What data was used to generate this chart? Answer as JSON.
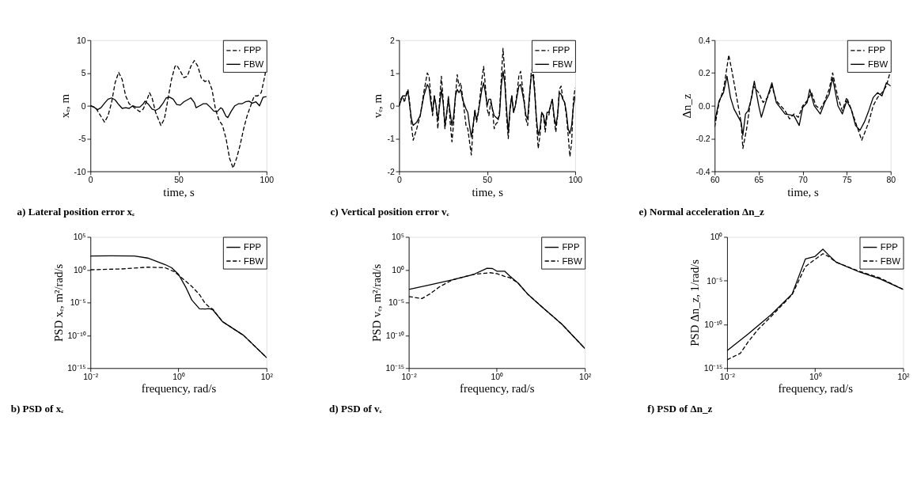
{
  "chart_data": [
    {
      "type": "line",
      "title": "a) Lateral position error xₑ",
      "xlabel": "time, s",
      "ylabel": "xₑ, m",
      "xlim": [
        0,
        100
      ],
      "xticks": [
        0,
        50,
        100
      ],
      "ylim": [
        -10,
        10
      ],
      "yticks": [
        -10,
        -5,
        0,
        5,
        10
      ],
      "grid": false,
      "legend": "top right",
      "series": [
        {
          "name": "FPP",
          "color": "#000000",
          "line_style": "dashed",
          "x": [
            0,
            3,
            5,
            8,
            10,
            12,
            14,
            16,
            18,
            20,
            22,
            25,
            28,
            30,
            32,
            33.5,
            35,
            37,
            40,
            42,
            44,
            46,
            48,
            49,
            51,
            53,
            55,
            57,
            59,
            61,
            63,
            65,
            67,
            69,
            71,
            73,
            75,
            77,
            79,
            81,
            83,
            85,
            87,
            89,
            91,
            93,
            95,
            97,
            99,
            100
          ],
          "values": [
            0,
            -0.3,
            -1.2,
            -2.5,
            -1.5,
            0.5,
            3.5,
            5.1,
            4,
            1.5,
            0.3,
            -0.3,
            -0.9,
            -0.5,
            0.8,
            2,
            1.2,
            -1,
            -3,
            -2,
            1,
            4,
            6,
            6.2,
            5.3,
            4.3,
            4.5,
            6,
            6.9,
            6,
            4.2,
            3.7,
            3.9,
            2.5,
            -0.5,
            -2.2,
            -3,
            -5,
            -8,
            -9.5,
            -8,
            -6,
            -3.5,
            -1.5,
            0,
            1.5,
            1.5,
            2,
            4.5,
            6.2
          ]
        },
        {
          "name": "FBW",
          "color": "#000000",
          "line_style": "solid",
          "x": [
            0,
            2,
            4,
            6,
            8,
            10,
            12,
            14,
            16,
            18,
            20,
            22,
            24,
            26,
            28,
            30,
            31,
            33,
            35,
            37,
            39,
            41,
            43,
            45,
            47,
            49,
            51,
            53,
            55,
            57,
            59,
            60,
            62,
            64,
            66,
            68,
            70,
            72,
            74,
            75,
            77,
            78,
            80,
            82,
            84,
            86,
            88,
            90,
            92,
            94,
            96,
            98,
            100
          ],
          "values": [
            0,
            -0.2,
            -0.6,
            -0.3,
            0.4,
            1,
            1.2,
            0.9,
            0.2,
            -0.4,
            -0.3,
            -0.4,
            0,
            -0.2,
            -0.2,
            0.3,
            0.7,
            0.2,
            -0.5,
            -0.7,
            -0.4,
            0.3,
            1.2,
            1.3,
            1,
            0.2,
            0.1,
            0.6,
            0.9,
            1.2,
            0.5,
            -0.3,
            0,
            0.3,
            0.3,
            -0.2,
            -0.8,
            -0.9,
            -0.3,
            -0.5,
            -1.6,
            -1.8,
            -0.8,
            0,
            0.3,
            0.3,
            0.6,
            0.7,
            0.4,
            0.6,
            0,
            1.3,
            1.4
          ]
        }
      ]
    },
    {
      "type": "line",
      "title": "c) Vertical position error vₑ",
      "xlabel": "time, s",
      "ylabel": "vₑ, m",
      "xlim": [
        0,
        100
      ],
      "xticks": [
        0,
        50,
        100
      ],
      "ylim": [
        -2,
        2
      ],
      "yticks": [
        -2,
        -1,
        0,
        1,
        2
      ],
      "grid": false,
      "legend": "top right",
      "series": [
        {
          "name": "FPP",
          "color": "#000000",
          "line_style": "dashed",
          "x": [
            0,
            1,
            2,
            3,
            4,
            5,
            6,
            7,
            8,
            10,
            12,
            14,
            16,
            17,
            18,
            19,
            20,
            21,
            22,
            23,
            24,
            25,
            26,
            27,
            28,
            29,
            30,
            31,
            32,
            33,
            34,
            35,
            36,
            38,
            39,
            40,
            41,
            42,
            43,
            44,
            45,
            47,
            48,
            49,
            50,
            51,
            52,
            53,
            54,
            55,
            56,
            57,
            58,
            59,
            60,
            61,
            62,
            63,
            64,
            65,
            66,
            67,
            68,
            69,
            70,
            71,
            72,
            73,
            74,
            75,
            76,
            77,
            78,
            79,
            80,
            81,
            82,
            83,
            84,
            85,
            86,
            87,
            88,
            89,
            90,
            91,
            92,
            93,
            94,
            95,
            96,
            97,
            98,
            99,
            100
          ],
          "values": [
            0,
            0.2,
            0.3,
            0.1,
            0.35,
            0.5,
            0.1,
            -0.6,
            -1.05,
            -0.7,
            -0.3,
            0.4,
            1,
            0.9,
            0.3,
            -0.3,
            0.3,
            0,
            -0.7,
            0.2,
            0.9,
            0.2,
            -0.7,
            -0.3,
            0.3,
            -0.5,
            -1.1,
            -0.5,
            0.3,
            0.95,
            0.6,
            0.7,
            0.3,
            -0.6,
            -0.7,
            -1.1,
            -1.5,
            -0.7,
            -0.1,
            -0.5,
            -0.2,
            0.8,
            1.2,
            0.6,
            -0.1,
            -0.3,
            0.1,
            -0.1,
            -0.7,
            -0.55,
            -0.5,
            -0.2,
            0.8,
            1.75,
            1,
            -0.3,
            -1,
            -0.1,
            0.3,
            -0.2,
            0,
            0.4,
            0.9,
            1.05,
            0.6,
            0.2,
            -0.4,
            -0.6,
            0.2,
            1,
            1.2,
            0.5,
            -0.5,
            -1.3,
            -0.9,
            -0.2,
            -0.3,
            -0.8,
            -0.3,
            -0.3,
            0,
            0.2,
            -0.4,
            -0.8,
            -0.3,
            0.5,
            0.6,
            0.2,
            0.1,
            -0.3,
            -0.9,
            -1.55,
            -1.1,
            0.2,
            0.55
          ]
        },
        {
          "name": "FBW",
          "color": "#000000",
          "line_style": "solid",
          "x": [
            0,
            2,
            4,
            5,
            6,
            7,
            8,
            10,
            12,
            14,
            16,
            17,
            18,
            19,
            20,
            21,
            22,
            23,
            24,
            25,
            26,
            27,
            28,
            30,
            31,
            32,
            33,
            34,
            35,
            36,
            38,
            39,
            40,
            41,
            42,
            43,
            44,
            45,
            47,
            48,
            49,
            50,
            51,
            52,
            53,
            54,
            55,
            56,
            57,
            58,
            59,
            60,
            61,
            62,
            63,
            64,
            65,
            66,
            67,
            68,
            69,
            70,
            71,
            72,
            73,
            74,
            75,
            76,
            77,
            78,
            79,
            80,
            81,
            82,
            83,
            84,
            85,
            86,
            87,
            88,
            89,
            90,
            91,
            92,
            93,
            94,
            95,
            96,
            97,
            98,
            99,
            100
          ],
          "values": [
            0,
            0.3,
            0.3,
            0.45,
            0,
            -0.4,
            -0.6,
            -0.5,
            -0.3,
            0.3,
            0.65,
            0.55,
            0.1,
            -0.2,
            0.3,
            0,
            -0.4,
            0,
            0.5,
            0.1,
            -0.6,
            -0.2,
            0.2,
            -0.6,
            -0.3,
            0.3,
            0.5,
            0.4,
            0.5,
            0.2,
            -0.1,
            -0.2,
            -0.6,
            -0.95,
            -0.6,
            -0.2,
            -0.4,
            -0.2,
            0.5,
            0.7,
            0.4,
            0,
            0.2,
            0.2,
            -0.1,
            -0.3,
            -0.35,
            -0.4,
            -0.3,
            0.6,
            1.05,
            0.7,
            -0.1,
            -0.8,
            -0.1,
            0.3,
            -0.2,
            0,
            0.3,
            0.6,
            0.65,
            0.4,
            0.1,
            -0.3,
            -0.4,
            0.3,
            0.9,
            0.95,
            0.4,
            -0.4,
            -0.9,
            -0.7,
            -0.2,
            -0.3,
            -0.6,
            -0.2,
            -0.2,
            0,
            0.2,
            -0.3,
            -0.6,
            -0.3,
            0.4,
            0.35,
            0.2,
            0.1,
            -0.2,
            -0.7,
            -0.85,
            -0.6,
            0,
            0.3
          ]
        }
      ]
    },
    {
      "type": "line",
      "title": "e) Normal acceleration Δn_z",
      "xlabel": "time, s",
      "ylabel": "Δn_z",
      "xlim": [
        60,
        80
      ],
      "xticks": [
        60,
        65,
        70,
        75,
        80
      ],
      "ylim": [
        -0.4,
        0.4
      ],
      "yticks": [
        -0.4,
        -0.2,
        {
          "value": 0,
          "label": "0.0"
        },
        0.2,
        0.4
      ],
      "grid": false,
      "legend": "top right",
      "series": [
        {
          "name": "FPP",
          "color": "#000000",
          "line_style": "dashed",
          "x": [
            60,
            60.5,
            61,
            61.3,
            61.6,
            62,
            62.5,
            63,
            63.2,
            63.6,
            64,
            64.4,
            65,
            65.5,
            66,
            66.5,
            67,
            68,
            68.5,
            69,
            69.5,
            70,
            70.5,
            71,
            71.5,
            72,
            72.5,
            73,
            73.4,
            74,
            74.5,
            75,
            75.5,
            76,
            76.7,
            77,
            77.5,
            78,
            78.5,
            79,
            79.5,
            80
          ],
          "values": [
            -0.13,
            0.02,
            0.1,
            0.2,
            0.31,
            0.2,
            0.05,
            -0.1,
            -0.26,
            -0.15,
            0,
            0.12,
            0.08,
            0.02,
            0.05,
            0.12,
            0.03,
            -0.03,
            -0.08,
            -0.05,
            -0.07,
            0,
            0.03,
            0.08,
            0,
            -0.02,
            0.03,
            0.1,
            0.2,
            0.05,
            -0.03,
            0.05,
            -0.02,
            -0.1,
            -0.21,
            -0.17,
            -0.1,
            0,
            0.05,
            0.08,
            0.12,
            0.22
          ]
        },
        {
          "name": "FBW",
          "color": "#000000",
          "line_style": "solid",
          "x": [
            60,
            60.5,
            61,
            61.4,
            61.8,
            62.2,
            62.6,
            63,
            63.2,
            63.5,
            63.8,
            64.2,
            64.5,
            65,
            65.3,
            65.8,
            66.5,
            67,
            68,
            69,
            69.6,
            70,
            70.5,
            70.8,
            71.3,
            72,
            72.5,
            73,
            73.4,
            74,
            74.5,
            75,
            75.5,
            76,
            76.5,
            77,
            77.5,
            78,
            78.5,
            79,
            79.5,
            80
          ],
          "values": [
            -0.1,
            0.03,
            0.08,
            0.18,
            0.05,
            -0.02,
            -0.06,
            -0.1,
            -0.18,
            -0.05,
            -0.03,
            0.05,
            0.15,
            0,
            -0.07,
            0.02,
            0.14,
            0.02,
            -0.05,
            -0.06,
            -0.12,
            -0.01,
            0.02,
            0.1,
            0,
            -0.05,
            0.02,
            0.07,
            0.17,
            0,
            -0.05,
            0.03,
            -0.02,
            -0.12,
            -0.15,
            -0.1,
            -0.03,
            0.05,
            0.08,
            0.06,
            0.14,
            0.12
          ]
        }
      ]
    },
    {
      "type": "line",
      "title": "b) PSD of xₑ",
      "xlabel": "frequency, rad/s",
      "ylabel": "PSD xₑ, m²/rad/s",
      "log": "xy",
      "xlim": [
        0.01,
        100
      ],
      "xticks": [
        {
          "value": 0.01,
          "label": "10⁻²"
        },
        {
          "value": 1,
          "label": "10⁰"
        },
        {
          "value": 100,
          "label": "10²"
        }
      ],
      "ylim": [
        1e-15,
        100000.0
      ],
      "yticks": [
        {
          "value": 1e-15,
          "label": "10⁻¹⁵"
        },
        {
          "value": 1e-10,
          "label": "10⁻¹⁰"
        },
        {
          "value": 1e-05,
          "label": "10⁻⁵"
        },
        {
          "value": 1,
          "label": "10⁰"
        },
        {
          "value": 100000.0,
          "label": "10⁵"
        }
      ],
      "grid": false,
      "legend": "top right",
      "series": [
        {
          "name": "FPP",
          "color": "#000000",
          "line_style": "solid",
          "x": [
            0.01,
            0.03,
            0.1,
            0.2,
            0.5,
            0.7,
            1,
            1.5,
            2,
            3,
            4,
            5,
            6,
            10,
            30,
            100
          ],
          "values": [
            126,
            130,
            125,
            60,
            6,
            2,
            0.2,
            0.0016,
            2.5e-05,
            1.1e-06,
            1e-06,
            1.2e-06,
            8e-07,
            1.2e-08,
            1e-10,
            4e-14
          ]
        },
        {
          "name": "FBW",
          "color": "#000000",
          "line_style": "dashed",
          "x": [
            0.01,
            0.05,
            0.2,
            0.5,
            0.8,
            1,
            2,
            3,
            4,
            5,
            6,
            10,
            30,
            100
          ],
          "values": [
            1,
            1.3,
            2.5,
            2,
            0.5,
            0.15,
            0.003,
            0.00016,
            8e-06,
            2e-06,
            1e-06,
            1.2e-08,
            1e-10,
            4e-14
          ]
        }
      ]
    },
    {
      "type": "line",
      "title": "d) PSD of vₑ",
      "xlabel": "frequency, rad/s",
      "ylabel": "PSD vₑ, m²/rad/s",
      "log": "xy",
      "xlim": [
        0.01,
        100
      ],
      "xticks": [
        {
          "value": 0.01,
          "label": "10⁻²"
        },
        {
          "value": 1,
          "label": "10⁰"
        },
        {
          "value": 100,
          "label": "10²"
        }
      ],
      "ylim": [
        1e-15,
        100000.0
      ],
      "yticks": [
        {
          "value": 1e-15,
          "label": "10⁻¹⁵"
        },
        {
          "value": 1e-10,
          "label": "10⁻¹⁰"
        },
        {
          "value": 1e-05,
          "label": "10⁻⁵"
        },
        {
          "value": 1,
          "label": "10⁰"
        },
        {
          "value": 100000.0,
          "label": "10⁵"
        }
      ],
      "grid": false,
      "legend": "top right",
      "series": [
        {
          "name": "FPP",
          "color": "#000000",
          "line_style": "solid",
          "x": [
            0.01,
            0.03,
            0.1,
            0.3,
            0.6,
            0.8,
            1,
            1.5,
            2,
            3,
            5,
            10,
            30,
            100
          ],
          "values": [
            0.001,
            0.005,
            0.03,
            0.2,
            1.7,
            1.5,
            0.6,
            0.6,
            0.1,
            0.01,
            0.0002,
            3e-06,
            5e-09,
            1e-12
          ]
        },
        {
          "name": "FBW",
          "color": "#000000",
          "line_style": "dashed",
          "x": [
            0.01,
            0.02,
            0.03,
            0.05,
            0.1,
            0.3,
            0.7,
            1,
            1.5,
            2,
            3,
            5,
            10,
            30,
            100
          ],
          "values": [
            8e-05,
            4e-05,
            0.0002,
            0.0025,
            0.03,
            0.2,
            0.35,
            0.25,
            0.1,
            0.06,
            0.01,
            0.0002,
            3e-06,
            5e-09,
            1e-12
          ]
        }
      ]
    },
    {
      "type": "line",
      "title": "f) PSD of Δn_z",
      "xlabel": "frequency, rad/s",
      "ylabel": "PSD Δn_z, 1/rad/s",
      "log": "xy",
      "xlim": [
        0.01,
        100
      ],
      "xticks": [
        {
          "value": 0.01,
          "label": "10⁻²"
        },
        {
          "value": 1,
          "label": "10⁰"
        },
        {
          "value": 100,
          "label": "10²"
        }
      ],
      "ylim": [
        1e-15,
        1
      ],
      "yticks": [
        {
          "value": 1e-15,
          "label": "10⁻¹⁵"
        },
        {
          "value": 1e-10,
          "label": "10⁻¹⁰"
        },
        {
          "value": 1e-05,
          "label": "10⁻⁵"
        },
        {
          "value": 1,
          "label": "10⁰"
        }
      ],
      "grid": false,
      "legend": "top right",
      "series": [
        {
          "name": "FPP",
          "color": "#000000",
          "line_style": "solid",
          "x": [
            0.01,
            0.03,
            0.1,
            0.3,
            0.6,
            1,
            1.5,
            2,
            3,
            10,
            30,
            100
          ],
          "values": [
            1e-13,
            8e-12,
            1.3e-09,
            3e-07,
            0.003,
            0.006,
            0.04,
            0.009,
            0.0013,
            0.0001,
            1.6e-05,
            1e-06
          ]
        },
        {
          "name": "FBW",
          "color": "#000000",
          "line_style": "dashed",
          "x": [
            0.01,
            0.02,
            0.03,
            0.05,
            0.1,
            0.3,
            0.6,
            1,
            1.5,
            2,
            3,
            10,
            30,
            100
          ],
          "values": [
            9e-15,
            5e-14,
            1e-12,
            2.5e-11,
            8e-10,
            2.5e-07,
            0.0004,
            0.0028,
            0.012,
            0.006,
            0.0013,
            0.00012,
            2e-05,
            1e-06
          ]
        }
      ]
    }
  ]
}
